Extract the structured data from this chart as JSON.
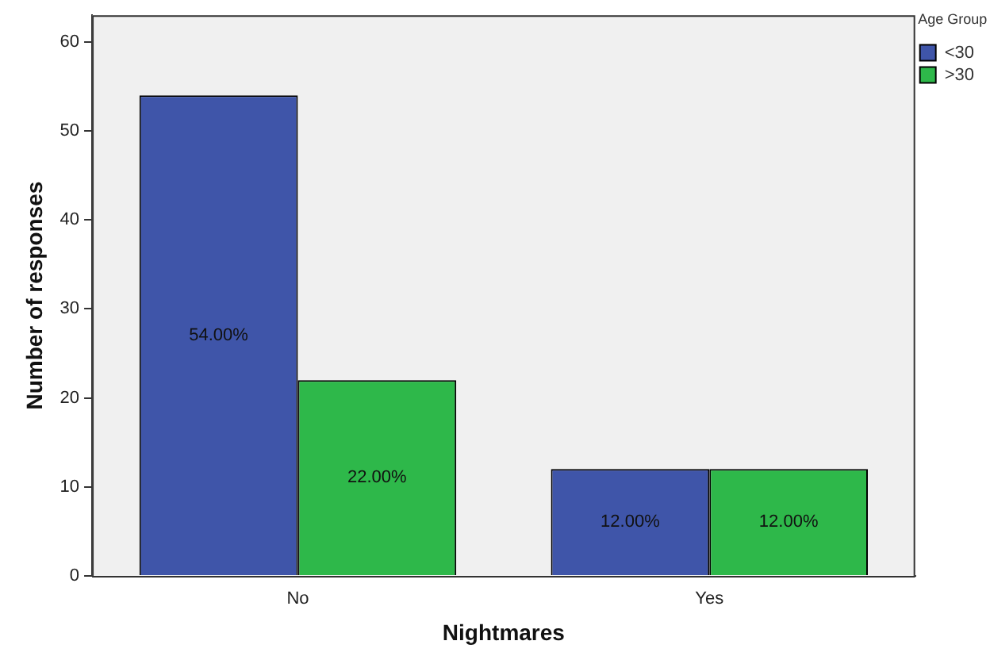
{
  "chart_data": {
    "type": "bar",
    "xlabel": "Nightmares",
    "ylabel": "Number of responses",
    "legend_title": "Age Group",
    "categories": [
      "No",
      "Yes"
    ],
    "series": [
      {
        "name": "<30",
        "color": "#3f55a9",
        "values": [
          54,
          12
        ],
        "value_labels": [
          "54.00%",
          "12.00%"
        ]
      },
      {
        "name": ">30",
        "color": "#2eb84a",
        "values": [
          22,
          12
        ],
        "value_labels": [
          "22.00%",
          "12.00%"
        ]
      }
    ],
    "ylim": [
      0,
      63
    ],
    "yticks": [
      0,
      10,
      20,
      30,
      40,
      50,
      60
    ],
    "grid": false,
    "legend": "top right"
  }
}
